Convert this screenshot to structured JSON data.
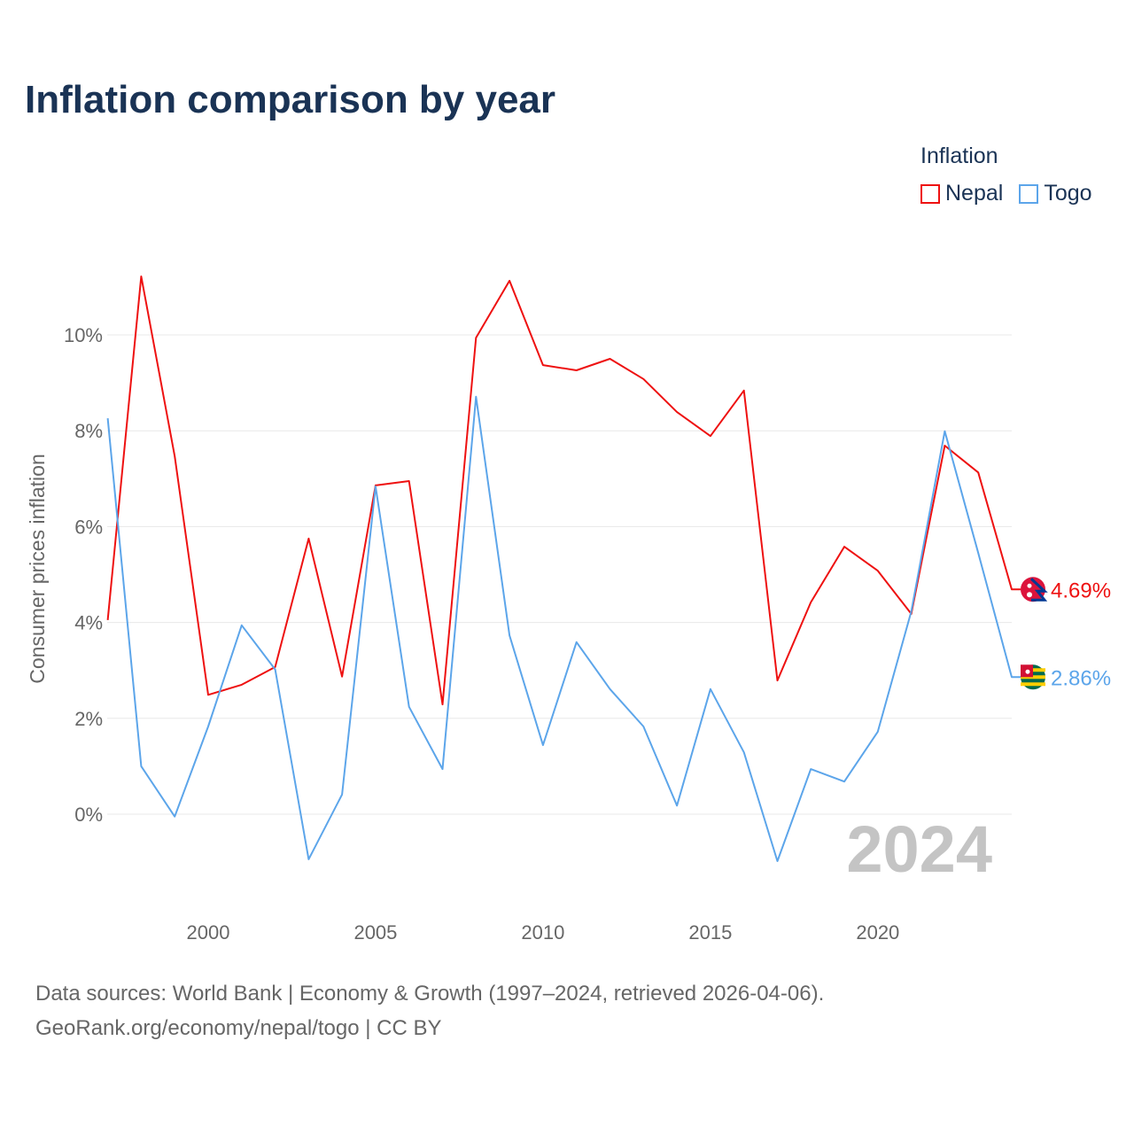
{
  "chart_data": {
    "type": "line",
    "title": "Inflation comparison by year",
    "xlabel": "",
    "ylabel": "Consumer prices inflation",
    "legend_title": "Inflation",
    "legend_position": "top-right",
    "x": [
      1997,
      1998,
      1999,
      2000,
      2001,
      2002,
      2003,
      2004,
      2005,
      2006,
      2007,
      2008,
      2009,
      2010,
      2011,
      2012,
      2013,
      2014,
      2015,
      2016,
      2017,
      2018,
      2019,
      2020,
      2021,
      2022,
      2023,
      2024
    ],
    "xlim": [
      1997,
      2024
    ],
    "ylim": [
      -1.7,
      12
    ],
    "x_ticks": [
      2000,
      2005,
      2010,
      2015,
      2020
    ],
    "y_ticks": [
      0,
      2,
      4,
      6,
      8,
      10
    ],
    "y_tick_labels": [
      "0%",
      "2%",
      "4%",
      "6%",
      "8%",
      "10%"
    ],
    "grid": true,
    "watermark_year": "2024",
    "series": [
      {
        "name": "Nepal",
        "color": "#ee1111",
        "end_label": "4.69%",
        "flag": "nepal-flag",
        "values": [
          4.05,
          11.22,
          7.47,
          2.49,
          2.7,
          3.07,
          5.75,
          2.87,
          6.86,
          6.95,
          2.29,
          9.94,
          11.13,
          9.37,
          9.26,
          9.5,
          9.08,
          8.39,
          7.89,
          8.84,
          2.79,
          4.42,
          5.58,
          5.08,
          4.18,
          7.69,
          7.13,
          4.69
        ]
      },
      {
        "name": "Togo",
        "color": "#5ca5ea",
        "end_label": "2.86%",
        "flag": "togo-flag",
        "values": [
          8.26,
          1.0,
          -0.05,
          1.83,
          3.94,
          3.02,
          -0.94,
          0.41,
          6.84,
          2.24,
          0.94,
          8.71,
          3.73,
          1.44,
          3.59,
          2.61,
          1.83,
          0.18,
          2.61,
          1.29,
          -0.98,
          0.94,
          0.68,
          1.72,
          4.23,
          7.99,
          5.45,
          2.86
        ]
      }
    ]
  },
  "footer": {
    "line1": "Data sources: World Bank | Economy & Growth (1997–2024, retrieved 2026-04-06).",
    "line2": "GeoRank.org/economy/nepal/togo | CC BY"
  }
}
